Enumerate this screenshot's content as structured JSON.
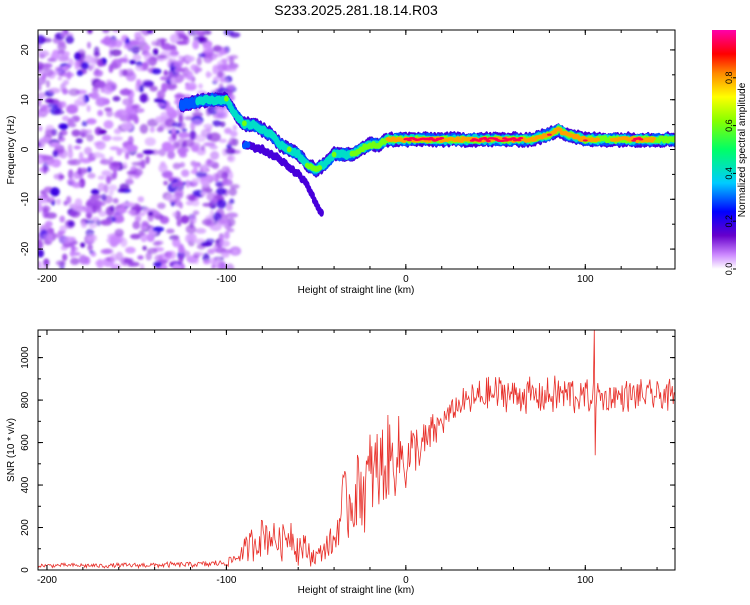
{
  "title": "S233.2025.281.18.14.R03",
  "colors": {
    "snr_line": "#e8302a",
    "axis": "#000000",
    "spectrogram_ridge_peak": "#e8302a",
    "spectrogram_background_noise": "#8a2be2"
  },
  "chart_data": [
    {
      "type": "heatmap",
      "name": "spectrogram",
      "xlabel": "Height of straight line (km)",
      "ylabel": "Frequency (Hz)",
      "xlim": [
        -205,
        150
      ],
      "ylim": [
        -24,
        24
      ],
      "xticks": [
        -200,
        -100,
        0,
        100
      ],
      "xtick_labels": [
        "-200",
        "-100",
        "0",
        "100"
      ],
      "yticks": [
        -20,
        -10,
        0,
        10,
        20
      ],
      "ytick_labels": [
        "-20",
        "-10",
        "0",
        "10",
        "20"
      ],
      "grid": false,
      "noise_region": {
        "x_range": [
          -205,
          -95
        ],
        "y_range": [
          -24,
          24
        ],
        "amplitude": 0.15
      },
      "ridge": {
        "x": [
          -125,
          -110,
          -100,
          -95,
          -90,
          -85,
          -80,
          -75,
          -70,
          -65,
          -60,
          -55,
          -50,
          -45,
          -40,
          -35,
          -30,
          -25,
          -20,
          -15,
          -10,
          -5,
          0,
          10,
          20,
          30,
          40,
          50,
          60,
          70,
          80,
          85,
          90,
          100,
          110,
          120,
          130,
          140,
          150
        ],
        "y": [
          9,
          10,
          10,
          7,
          5,
          5,
          4,
          3,
          1,
          0,
          -1,
          -3,
          -4,
          -3,
          -1,
          -1,
          -1,
          0,
          1,
          1,
          2,
          2,
          2,
          2,
          2,
          2,
          2,
          2,
          2,
          2,
          3,
          4,
          3,
          2,
          2,
          2,
          2,
          2,
          2
        ],
        "amplitude": [
          0.3,
          0.4,
          0.55,
          0.5,
          0.55,
          0.5,
          0.5,
          0.45,
          0.5,
          0.55,
          0.5,
          0.55,
          0.6,
          0.5,
          0.55,
          0.5,
          0.55,
          0.6,
          0.65,
          0.7,
          0.75,
          0.85,
          0.9,
          0.95,
          0.9,
          0.8,
          0.95,
          1.0,
          0.95,
          0.85,
          0.9,
          0.8,
          0.85,
          0.9,
          0.7,
          0.8,
          0.95,
          0.7,
          0.6
        ]
      },
      "branch": {
        "x": [
          -90,
          -80,
          -70,
          -60,
          -55,
          -50,
          -47
        ],
        "y": [
          1,
          0,
          -2,
          -5,
          -7,
          -11,
          -13
        ],
        "amplitude": [
          0.25,
          0.2,
          0.2,
          0.15,
          0.15,
          0.15,
          0.15
        ]
      },
      "colorbar": {
        "label": "Normalized spectral amplitude",
        "range": [
          0,
          1
        ],
        "ticks": [
          0,
          0.2,
          0.4,
          0.6,
          0.8
        ],
        "tick_labels": [
          "0.0",
          "0.2",
          "0.4",
          "0.6",
          "0.8"
        ]
      }
    },
    {
      "type": "line",
      "name": "snr",
      "xlabel": "Height of straight line (km)",
      "ylabel": "SNR (10 * v/v)",
      "xlim": [
        -205,
        150
      ],
      "ylim": [
        0,
        1130
      ],
      "xticks": [
        -200,
        -100,
        0,
        100
      ],
      "xtick_labels": [
        "-200",
        "-100",
        "0",
        "100"
      ],
      "yticks": [
        0,
        200,
        400,
        600,
        800,
        1000
      ],
      "ytick_labels": [
        "0",
        "200",
        "400",
        "600",
        "800",
        "1000"
      ],
      "grid": false,
      "series": [
        {
          "name": "SNR",
          "x": [
            -205,
            -190,
            -170,
            -150,
            -130,
            -110,
            -100,
            -95,
            -90,
            -85,
            -80,
            -75,
            -70,
            -65,
            -60,
            -55,
            -50,
            -45,
            -40,
            -35,
            -30,
            -25,
            -20,
            -15,
            -10,
            -5,
            0,
            5,
            10,
            15,
            20,
            25,
            30,
            40,
            50,
            60,
            70,
            80,
            90,
            100,
            105,
            110,
            120,
            130,
            140,
            150
          ],
          "y": [
            20,
            22,
            20,
            22,
            25,
            28,
            35,
            55,
            90,
            130,
            170,
            160,
            130,
            180,
            110,
            90,
            60,
            110,
            130,
            300,
            330,
            380,
            420,
            460,
            500,
            540,
            520,
            560,
            580,
            640,
            700,
            740,
            780,
            810,
            830,
            830,
            820,
            820,
            830,
            810,
            820,
            810,
            820,
            820,
            820,
            820
          ],
          "amplitude": [
            10,
            10,
            12,
            12,
            14,
            16,
            20,
            40,
            60,
            90,
            110,
            110,
            100,
            110,
            90,
            70,
            50,
            60,
            90,
            200,
            220,
            250,
            250,
            240,
            230,
            200,
            180,
            150,
            120,
            100,
            80,
            70,
            70,
            90,
            90,
            90,
            90,
            90,
            110,
            90,
            90,
            80,
            80,
            80,
            80,
            80
          ]
        }
      ],
      "spikes": [
        {
          "x": 105,
          "y_high": 1130,
          "y_low": 540
        }
      ]
    }
  ]
}
